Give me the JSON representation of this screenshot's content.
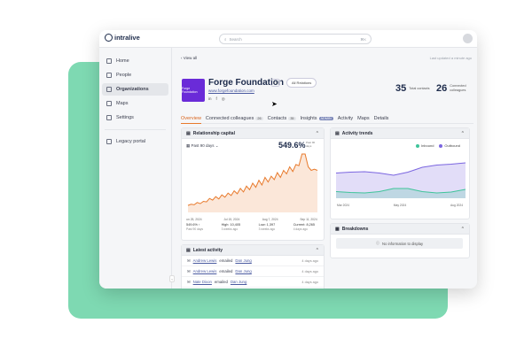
{
  "app": {
    "name": "intralive"
  },
  "search": {
    "placeholder": "Search",
    "shortcut": "⌘K"
  },
  "sidebar": {
    "items": [
      {
        "label": "Home",
        "icon": "home-icon"
      },
      {
        "label": "People",
        "icon": "people-icon"
      },
      {
        "label": "Organizations",
        "icon": "building-icon",
        "active": true
      },
      {
        "label": "Maps",
        "icon": "map-icon"
      },
      {
        "label": "Settings",
        "icon": "gear-icon"
      }
    ],
    "legacy": "Legacy portal"
  },
  "header": {
    "back": "View all",
    "updated": "Last updated a minute ago"
  },
  "org": {
    "logo_text": "Forge Foundation",
    "name": "Forge Foundation",
    "badge": "+1",
    "button": "All Relations",
    "url": "www.forgefoundation.com",
    "socials": [
      "in",
      "f",
      "◎"
    ]
  },
  "stats": [
    {
      "num": "35",
      "label": "Total contacts"
    },
    {
      "num": "26",
      "label": "Connected colleagues"
    }
  ],
  "tabs": [
    {
      "label": "Overview",
      "active": true
    },
    {
      "label": "Connected colleagues",
      "count": "26"
    },
    {
      "label": "Contacts",
      "count": "35"
    },
    {
      "label": "Insights",
      "badge": "ADMIN"
    },
    {
      "label": "Activity"
    },
    {
      "label": "Maps"
    },
    {
      "label": "Details"
    }
  ],
  "relationship": {
    "title": "Relationship capital",
    "filter": "Past 90 days",
    "value": "549.6%",
    "value_label": "Past 90 days",
    "stats": [
      {
        "value": "549.6% ↑",
        "sub": "Past 90 days"
      },
      {
        "value": "High: 10,405",
        "sub": "3 weeks ago"
      },
      {
        "value": "Low: 1,397",
        "sub": "3 weeks ago"
      },
      {
        "value": "Current: 8,265",
        "sub": "4 days ago"
      }
    ]
  },
  "trends": {
    "title": "Activity trends",
    "legend": [
      "Inbound",
      "Outbound"
    ]
  },
  "breakdowns": {
    "title": "Breakdowns",
    "empty": "No information to display"
  },
  "latest": {
    "title": "Latest activity",
    "rows": [
      {
        "who": "Andrew Lewis",
        "action": "emailed",
        "target": "Dan Jung",
        "when": "4 days ago"
      },
      {
        "who": "Andrew Lewis",
        "action": "emailed",
        "target": "Dan Jung",
        "when": "4 days ago"
      },
      {
        "who": "Nate Dixon",
        "action": "emailed",
        "target": "Dan Jung",
        "when": "4 days ago"
      }
    ]
  },
  "colors": {
    "accent": "#e87a2c",
    "inbound": "#3fc49a",
    "outbound": "#7b66e0",
    "brand": "#6a2bd8",
    "bg_green": "#7ed9b2"
  },
  "chart_data": [
    {
      "type": "area",
      "title": "Relationship capital",
      "x_ticks": [
        "Jun 25, 2024",
        "Jul 15, 2024",
        "Aug 7, 2024",
        "Sep 11, 2024"
      ],
      "values": [
        12,
        14,
        13,
        17,
        15,
        19,
        18,
        24,
        21,
        27,
        23,
        30,
        26,
        33,
        29,
        37,
        32,
        41,
        35,
        45,
        39,
        50,
        43,
        55,
        47,
        60,
        52,
        62,
        56,
        68,
        60,
        72,
        66,
        78,
        70,
        82,
        80,
        100,
        100,
        78,
        72,
        74,
        72
      ],
      "ylim": [
        0,
        100
      ]
    },
    {
      "type": "area",
      "title": "Activity trends",
      "x_ticks": [
        "Mar 2024",
        "May 2024",
        "Aug 2024"
      ],
      "series": [
        {
          "name": "Outbound",
          "values": [
            57,
            59,
            60,
            57,
            52,
            59,
            70,
            75,
            77,
            80
          ]
        },
        {
          "name": "Inbound",
          "values": [
            15,
            13,
            12,
            15,
            22,
            22,
            15,
            12,
            14,
            20
          ]
        }
      ],
      "ylim": [
        0,
        100
      ]
    }
  ]
}
